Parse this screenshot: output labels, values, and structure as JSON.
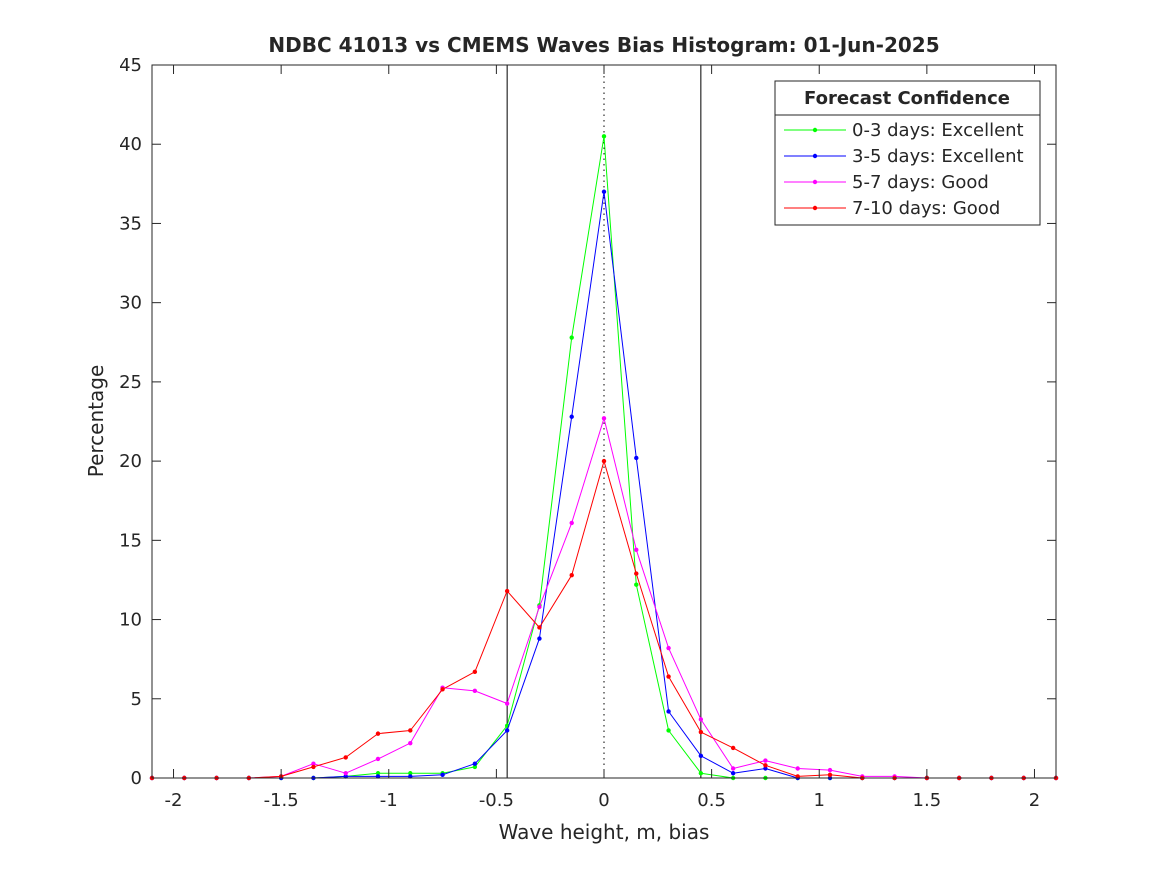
{
  "chart_data": {
    "type": "line",
    "title": "NDBC 41013 vs CMEMS Waves Bias Histogram: 01-Jun-2025",
    "xlabel": "Wave height, m, bias",
    "ylabel": "Percentage",
    "xlim": [
      -2.1,
      2.1
    ],
    "ylim": [
      0,
      45
    ],
    "xticks": [
      -2,
      -1.5,
      -1,
      -0.5,
      0,
      0.5,
      1,
      1.5,
      2
    ],
    "xtick_labels": [
      "-2",
      "-1.5",
      "-1",
      "-0.5",
      "0",
      "0.5",
      "1",
      "1.5",
      "2"
    ],
    "yticks": [
      0,
      5,
      10,
      15,
      20,
      25,
      30,
      35,
      40,
      45
    ],
    "ytick_labels": [
      "0",
      "5",
      "10",
      "15",
      "20",
      "25",
      "30",
      "35",
      "40",
      "45"
    ],
    "grid": false,
    "reference_lines": [
      {
        "x": -0.45,
        "style": "solid"
      },
      {
        "x": 0,
        "style": "dotted"
      },
      {
        "x": 0.45,
        "style": "solid"
      }
    ],
    "legend": {
      "title": "Forecast Confidence",
      "position": "top-right"
    },
    "x": [
      -2.1,
      -1.95,
      -1.8,
      -1.65,
      -1.5,
      -1.35,
      -1.2,
      -1.05,
      -0.9,
      -0.75,
      -0.6,
      -0.45,
      -0.3,
      -0.15,
      0,
      0.15,
      0.3,
      0.45,
      0.6,
      0.75,
      0.9,
      1.05,
      1.2,
      1.35,
      1.5,
      1.65,
      1.8,
      1.95,
      2.1
    ],
    "series": [
      {
        "name": "0-3 days: Excellent",
        "color": "#00ff00",
        "values": [
          0,
          0,
          0,
          0,
          0,
          0,
          0.1,
          0.3,
          0.3,
          0.3,
          0.7,
          3.3,
          10.9,
          27.8,
          40.5,
          12.2,
          3.0,
          0.3,
          0,
          0,
          0,
          0,
          0,
          0,
          0,
          0,
          0,
          0,
          0
        ]
      },
      {
        "name": "3-5 days: Excellent",
        "color": "#0000ff",
        "values": [
          0,
          0,
          0,
          0,
          0,
          0,
          0.1,
          0.1,
          0.1,
          0.2,
          0.9,
          3.0,
          8.8,
          22.8,
          37.0,
          20.2,
          4.2,
          1.4,
          0.3,
          0.6,
          0,
          0,
          0,
          0,
          0,
          0,
          0,
          0,
          0
        ]
      },
      {
        "name": "5-7 days: Good",
        "color": "#ff00ff",
        "values": [
          0,
          0,
          0,
          0,
          0.1,
          0.9,
          0.3,
          1.2,
          2.2,
          5.7,
          5.5,
          4.7,
          10.8,
          16.1,
          22.7,
          14.4,
          8.2,
          3.7,
          0.6,
          1.1,
          0.6,
          0.5,
          0.1,
          0.1,
          0,
          0,
          0,
          0,
          0
        ]
      },
      {
        "name": "7-10 days: Good",
        "color": "#ff0000",
        "values": [
          0,
          0,
          0,
          0,
          0.1,
          0.7,
          1.3,
          2.8,
          3.0,
          5.6,
          6.7,
          11.8,
          9.5,
          12.8,
          20.0,
          12.9,
          6.4,
          2.9,
          1.9,
          0.8,
          0.1,
          0.2,
          0,
          0,
          0,
          0,
          0,
          0,
          0
        ]
      }
    ]
  }
}
